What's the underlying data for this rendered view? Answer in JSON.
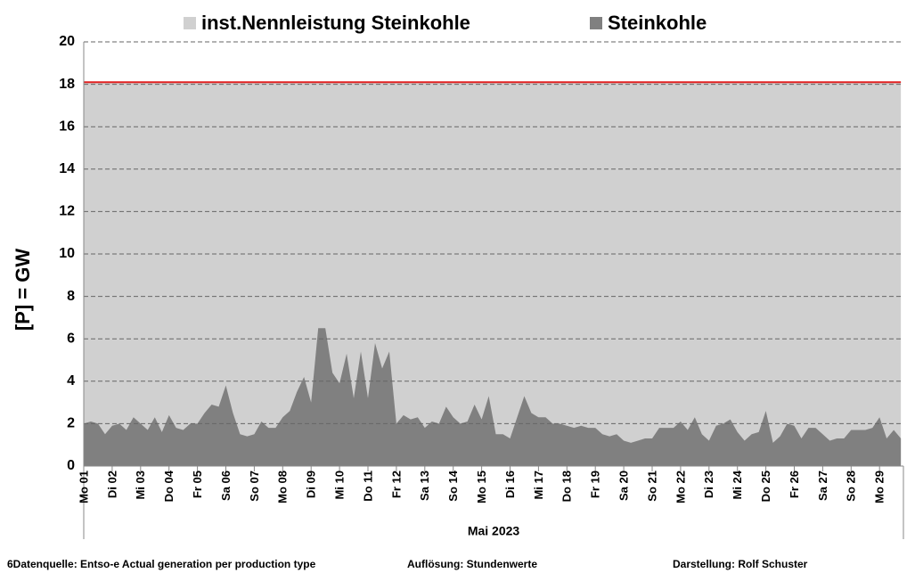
{
  "chart_data": {
    "type": "area",
    "ylabel": "[P]  =  GW",
    "xlabel": "Mai 2023",
    "footer": [
      "6Datenquelle: Entso-e  Actual generation per production type",
      "Auflösung:  Stundenwerte",
      "Darstellung:  Rolf Schuster"
    ],
    "xlim": [
      0,
      28.84
    ],
    "ylim": [
      0,
      20
    ],
    "yticks": [
      0,
      2,
      4,
      6,
      8,
      10,
      12,
      14,
      16,
      18,
      20
    ],
    "grid": true,
    "legend": "top",
    "xticks": [
      {
        "value": 0,
        "label": "Mo 01"
      },
      {
        "value": 1,
        "label": "Di 02"
      },
      {
        "value": 2,
        "label": "Mi 03"
      },
      {
        "value": 3,
        "label": "Do 04"
      },
      {
        "value": 4,
        "label": "Fr 05"
      },
      {
        "value": 5,
        "label": "Sa 06"
      },
      {
        "value": 6,
        "label": "So 07"
      },
      {
        "value": 7,
        "label": "Mo 08"
      },
      {
        "value": 8,
        "label": "Di 09"
      },
      {
        "value": 9,
        "label": "Mi 10"
      },
      {
        "value": 10,
        "label": "Do 11"
      },
      {
        "value": 11,
        "label": "Fr 12"
      },
      {
        "value": 12,
        "label": "Sa 13"
      },
      {
        "value": 13,
        "label": "So 14"
      },
      {
        "value": 14,
        "label": "Mo 15"
      },
      {
        "value": 15,
        "label": "Di 16"
      },
      {
        "value": 16,
        "label": "Mi 17"
      },
      {
        "value": 17,
        "label": "Do 18"
      },
      {
        "value": 18,
        "label": "Fr 19"
      },
      {
        "value": 19,
        "label": "Sa 20"
      },
      {
        "value": 20,
        "label": "So 21"
      },
      {
        "value": 21,
        "label": "Mo 22"
      },
      {
        "value": 22,
        "label": "Di 23"
      },
      {
        "value": 23,
        "label": "Mi 24"
      },
      {
        "value": 24,
        "label": "Do 25"
      },
      {
        "value": 25,
        "label": "Fr 26"
      },
      {
        "value": 26,
        "label": "Sa 27"
      },
      {
        "value": 27,
        "label": "So 28"
      },
      {
        "value": 28,
        "label": "Mo 29"
      }
    ],
    "x": [
      0,
      0.25,
      0.5,
      0.75,
      1,
      1.25,
      1.5,
      1.75,
      2,
      2.25,
      2.5,
      2.75,
      3,
      3.25,
      3.5,
      3.75,
      4,
      4.25,
      4.5,
      4.75,
      5,
      5.25,
      5.5,
      5.75,
      6,
      6.25,
      6.5,
      6.75,
      7,
      7.25,
      7.5,
      7.75,
      8,
      8.25,
      8.5,
      8.75,
      9,
      9.25,
      9.5,
      9.75,
      10,
      10.25,
      10.5,
      10.75,
      11,
      11.25,
      11.5,
      11.75,
      12,
      12.25,
      12.5,
      12.75,
      13,
      13.25,
      13.5,
      13.75,
      14,
      14.25,
      14.5,
      14.75,
      15,
      15.25,
      15.5,
      15.75,
      16,
      16.25,
      16.5,
      16.75,
      17,
      17.25,
      17.5,
      17.75,
      18,
      18.25,
      18.5,
      18.75,
      19,
      19.25,
      19.5,
      19.75,
      20,
      20.25,
      20.5,
      20.75,
      21,
      21.25,
      21.5,
      21.75,
      22,
      22.25,
      22.5,
      22.75,
      23,
      23.25,
      23.5,
      23.75,
      24,
      24.25,
      24.5,
      24.75,
      25,
      25.25,
      25.5,
      25.75,
      26,
      26.25,
      26.5,
      26.75,
      27,
      27.25,
      27.5,
      27.75,
      28,
      28.25,
      28.5,
      28.75
    ],
    "series": [
      {
        "name": "inst.Nennleistung Steinkohle",
        "color": "#d0d0d0",
        "line_color": "#e02020",
        "values": [
          18.1,
          18.1,
          18.1,
          18.1,
          18.1,
          18.1,
          18.1,
          18.1,
          18.1,
          18.1,
          18.1,
          18.1,
          18.1,
          18.1,
          18.1,
          18.1,
          18.1,
          18.1,
          18.1,
          18.1,
          18.1,
          18.1,
          18.1,
          18.1,
          18.1,
          18.1,
          18.1,
          18.1,
          18.1,
          18.1,
          18.1,
          18.1,
          18.1,
          18.1,
          18.1,
          18.1,
          18.1,
          18.1,
          18.1,
          18.1,
          18.1,
          18.1,
          18.1,
          18.1,
          18.1,
          18.1,
          18.1,
          18.1,
          18.1,
          18.1,
          18.1,
          18.1,
          18.1,
          18.1,
          18.1,
          18.1,
          18.1,
          18.1,
          18.1,
          18.1,
          18.1,
          18.1,
          18.1,
          18.1,
          18.1,
          18.1,
          18.1,
          18.1,
          18.1,
          18.1,
          18.1,
          18.1,
          18.1,
          18.1,
          18.1,
          18.1,
          18.1,
          18.1,
          18.1,
          18.1,
          18.1,
          18.1,
          18.1,
          18.1,
          18.1,
          18.1,
          18.1,
          18.1,
          18.1,
          18.1,
          18.1,
          18.1,
          18.1,
          18.1,
          18.1,
          18.1,
          18.1,
          18.1,
          18.1,
          18.1,
          18.1,
          18.1,
          18.1,
          18.1,
          18.1,
          18.1,
          18.1,
          18.1,
          18.1,
          18.1,
          18.1,
          18.1,
          18.1,
          18.1,
          18.1,
          18.1
        ]
      },
      {
        "name": "Steinkohle",
        "color": "#808080",
        "values": [
          2.0,
          2.1,
          2.0,
          1.5,
          1.9,
          2.0,
          1.7,
          2.3,
          2.0,
          1.7,
          2.3,
          1.6,
          2.4,
          1.8,
          1.7,
          2.0,
          2.0,
          2.5,
          2.9,
          2.8,
          3.8,
          2.5,
          1.5,
          1.4,
          1.5,
          2.1,
          1.8,
          1.8,
          2.3,
          2.6,
          3.5,
          4.2,
          3.0,
          6.5,
          6.5,
          4.4,
          3.9,
          5.3,
          3.2,
          5.4,
          3.2,
          5.8,
          4.6,
          5.4,
          2.0,
          2.4,
          2.2,
          2.3,
          1.8,
          2.1,
          2.0,
          2.8,
          2.3,
          2.0,
          2.1,
          2.9,
          2.2,
          3.3,
          1.5,
          1.5,
          1.3,
          2.3,
          3.3,
          2.5,
          2.3,
          2.3,
          2.0,
          2.0,
          1.9,
          1.8,
          1.9,
          1.8,
          1.8,
          1.5,
          1.4,
          1.5,
          1.2,
          1.1,
          1.2,
          1.3,
          1.3,
          1.8,
          1.8,
          1.8,
          2.1,
          1.7,
          2.3,
          1.5,
          1.2,
          1.9,
          2.0,
          2.2,
          1.6,
          1.2,
          1.5,
          1.6,
          2.6,
          1.1,
          1.4,
          2.0,
          1.9,
          1.3,
          1.8,
          1.8,
          1.5,
          1.2,
          1.3,
          1.3,
          1.7,
          1.7,
          1.7,
          1.8,
          2.3,
          1.3,
          1.7,
          1.3
        ]
      }
    ]
  }
}
